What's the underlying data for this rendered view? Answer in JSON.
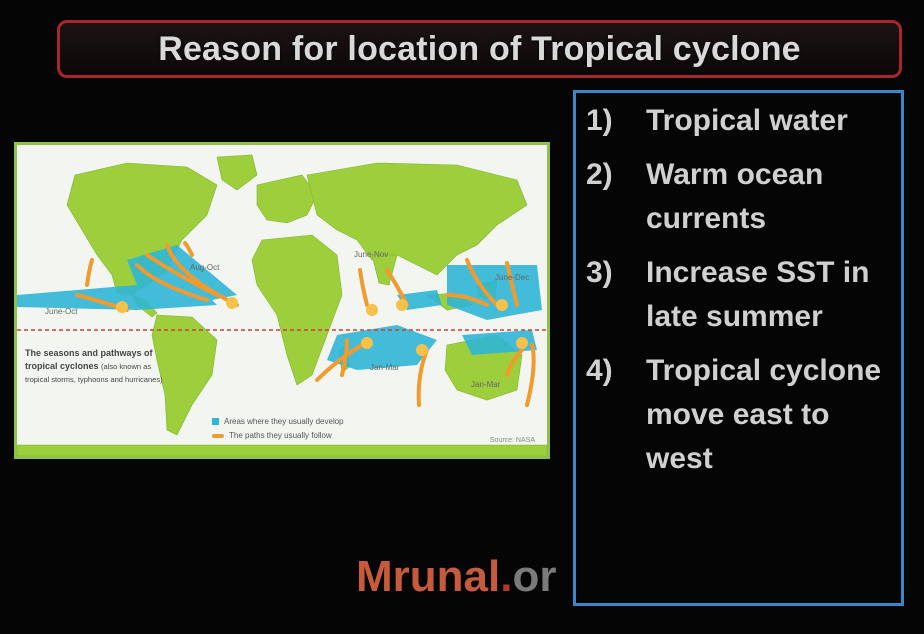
{
  "title": "Reason for location of Tropical cyclone",
  "map": {
    "caption_bold": "The seasons and pathways of tropical cyclones",
    "caption_small": "(also known as tropical storms, typhoons and hurricanes)",
    "legend": [
      {
        "icon": "blue-square",
        "label": "Areas where they usually develop"
      },
      {
        "icon": "orange-arrow",
        "label": "The paths they usually follow"
      }
    ],
    "source": "Source: NASA",
    "season_labels": {
      "aug_oct": "Aug-Oct",
      "june_oct": "June-Oct",
      "june_nov": "June-Nov",
      "june_dec": "June-Dec",
      "jan_mar_a": "Jan-Mar",
      "jan_mar_b": "Jan-Mar"
    },
    "colors": {
      "land": "#9dcf3c",
      "ocean": "#f3f6f0",
      "development": "#2fb6d6",
      "path": "#f29a2e",
      "equator": "#d23b3b",
      "border": "#8fbf4e"
    }
  },
  "points": [
    {
      "num": "1)",
      "text": "Tropical water"
    },
    {
      "num": "2)",
      "text": "Warm ocean currents"
    },
    {
      "num": "3)",
      "text": "Increase SST in late summer"
    },
    {
      "num": "4)",
      "text": "Tropical cyclone move east to west"
    }
  ],
  "brand": {
    "part1": "Mrunal",
    "part2": ".",
    "part3": "or"
  },
  "colors": {
    "title_border": "#a8262b",
    "points_border": "#3b86c7",
    "background": "#050505"
  }
}
